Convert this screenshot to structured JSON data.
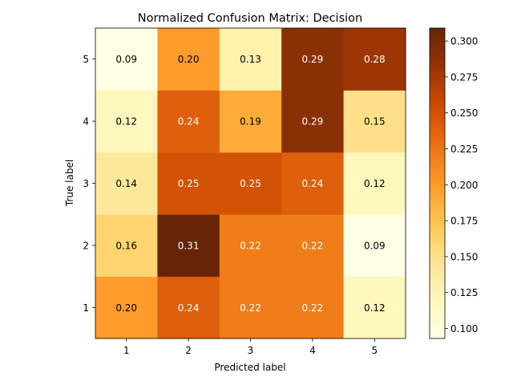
{
  "chart_data": {
    "type": "heatmap",
    "title": "Normalized Confusion Matrix: Decision",
    "xlabel": "Predicted label",
    "ylabel": "True label",
    "x_categories": [
      "1",
      "2",
      "3",
      "4",
      "5"
    ],
    "y_categories": [
      "1",
      "2",
      "3",
      "4",
      "5"
    ],
    "values": [
      [
        0.2,
        0.24,
        0.22,
        0.22,
        0.12
      ],
      [
        0.16,
        0.31,
        0.22,
        0.22,
        0.09
      ],
      [
        0.14,
        0.25,
        0.25,
        0.24,
        0.12
      ],
      [
        0.12,
        0.24,
        0.19,
        0.29,
        0.15
      ],
      [
        0.09,
        0.2,
        0.13,
        0.29,
        0.28
      ]
    ],
    "value_labels": [
      [
        "0.20",
        "0.24",
        "0.22",
        "0.22",
        "0.12"
      ],
      [
        "0.16",
        "0.31",
        "0.22",
        "0.22",
        "0.09"
      ],
      [
        "0.14",
        "0.25",
        "0.25",
        "0.24",
        "0.12"
      ],
      [
        "0.12",
        "0.24",
        "0.19",
        "0.29",
        "0.15"
      ],
      [
        "0.09",
        "0.20",
        "0.13",
        "0.29",
        "0.28"
      ]
    ],
    "colorbar": {
      "range": [
        0.093,
        0.309
      ],
      "ticks": [
        0.1,
        0.125,
        0.15,
        0.175,
        0.2,
        0.225,
        0.25,
        0.275,
        0.3
      ],
      "tick_labels": [
        "0.100",
        "0.125",
        "0.150",
        "0.175",
        "0.200",
        "0.225",
        "0.250",
        "0.275",
        "0.300"
      ]
    },
    "colormap": "YlOrBr",
    "colormap_stops": [
      "#ffffe5",
      "#fff7bc",
      "#fee391",
      "#fec44f",
      "#fe9929",
      "#ec7014",
      "#cc4c02",
      "#993404",
      "#662506"
    ],
    "grid": false
  }
}
